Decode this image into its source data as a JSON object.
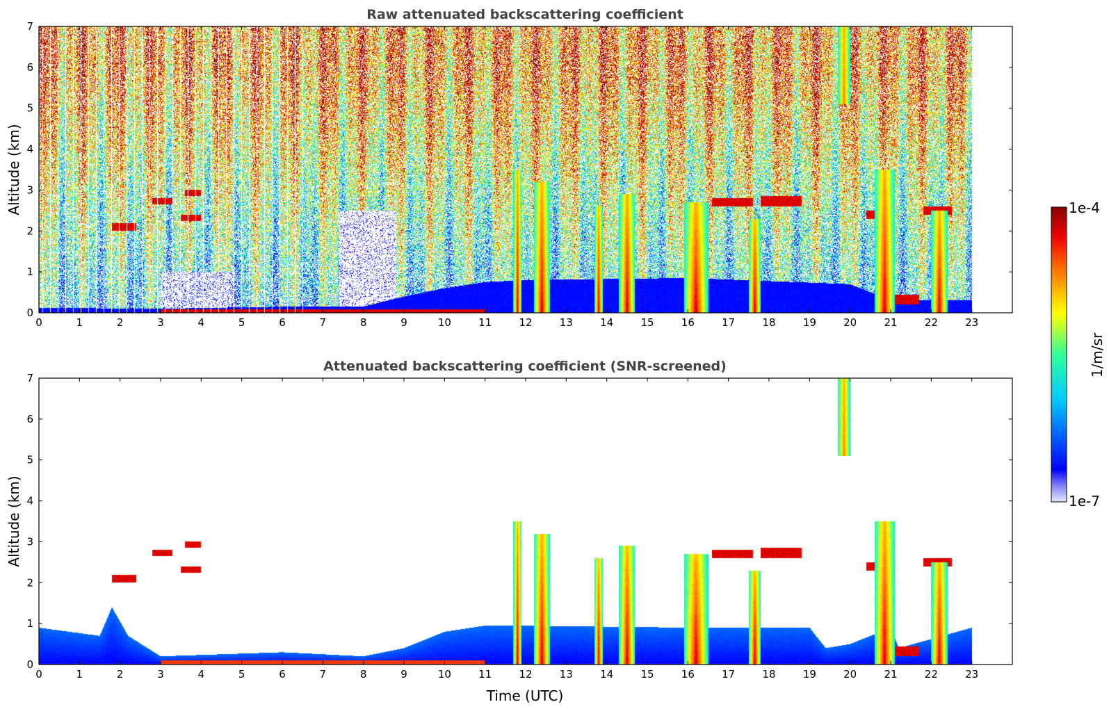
{
  "chart_data": [
    {
      "type": "heatmap",
      "title": "Raw attenuated backscattering coefficient",
      "xlabel": "",
      "ylabel": "Altitude (km)",
      "xlim": [
        0,
        24
      ],
      "ylim": [
        0,
        7
      ],
      "xticks": [
        "0",
        "1",
        "2",
        "3",
        "4",
        "5",
        "6",
        "7",
        "8",
        "9",
        "10",
        "11",
        "12",
        "13",
        "14",
        "15",
        "16",
        "17",
        "18",
        "19",
        "20",
        "21",
        "22",
        "23"
      ],
      "yticks": [
        "0",
        "1",
        "2",
        "3",
        "4",
        "5",
        "6",
        "7"
      ],
      "data_end_time": 23,
      "colorbar": {
        "label": "1/m/sr",
        "min": "1e-7",
        "max": "1e-4",
        "scale": "log",
        "colormap": "jet"
      },
      "features": {
        "surface_layer_top_km": [
          [
            0,
            0.12
          ],
          [
            3,
            0.1
          ],
          [
            6,
            0.15
          ],
          [
            8,
            0.15
          ],
          [
            9,
            0.4
          ],
          [
            10,
            0.6
          ],
          [
            11,
            0.75
          ],
          [
            12,
            0.8
          ],
          [
            16,
            0.85
          ],
          [
            20,
            0.7
          ],
          [
            21,
            0.3
          ],
          [
            23,
            0.3
          ]
        ],
        "clouds": [
          {
            "t0": 1.8,
            "t1": 2.4,
            "base_km": 2.0,
            "top_km": 2.2
          },
          {
            "t0": 2.8,
            "t1": 3.3,
            "base_km": 2.65,
            "top_km": 2.8
          },
          {
            "t0": 3.6,
            "t1": 4.0,
            "base_km": 2.85,
            "top_km": 3.0
          },
          {
            "t0": 3.5,
            "t1": 4.0,
            "base_km": 2.25,
            "top_km": 2.4
          },
          {
            "t0": 11.7,
            "t1": 11.9,
            "base_km": 0.0,
            "top_km": 3.5
          },
          {
            "t0": 12.2,
            "t1": 12.6,
            "base_km": 0.0,
            "top_km": 3.2
          },
          {
            "t0": 13.7,
            "t1": 13.9,
            "base_km": 0.0,
            "top_km": 2.6
          },
          {
            "t0": 14.3,
            "t1": 14.7,
            "base_km": 0.0,
            "top_km": 2.9
          },
          {
            "t0": 15.9,
            "t1": 16.5,
            "base_km": 0.0,
            "top_km": 2.7
          },
          {
            "t0": 16.6,
            "t1": 17.6,
            "base_km": 2.6,
            "top_km": 2.8
          },
          {
            "t0": 17.5,
            "t1": 17.8,
            "base_km": 0.0,
            "top_km": 2.3
          },
          {
            "t0": 17.8,
            "t1": 18.8,
            "base_km": 2.6,
            "top_km": 2.85
          },
          {
            "t0": 19.7,
            "t1": 20.0,
            "base_km": 5.1,
            "top_km": 7.0
          },
          {
            "t0": 20.4,
            "t1": 21.1,
            "base_km": 2.3,
            "top_km": 2.5
          },
          {
            "t0": 20.6,
            "t1": 21.1,
            "base_km": 0.0,
            "top_km": 3.5
          },
          {
            "t0": 21.1,
            "t1": 21.7,
            "base_km": 0.2,
            "top_km": 0.45
          },
          {
            "t0": 21.8,
            "t1": 22.5,
            "base_km": 2.4,
            "top_km": 2.6
          },
          {
            "t0": 22.0,
            "t1": 22.4,
            "base_km": 0.0,
            "top_km": 2.5
          }
        ]
      }
    },
    {
      "type": "heatmap",
      "title": "Attenuated backscattering coefficient (SNR-screened)",
      "xlabel": "Time (UTC)",
      "ylabel": "Altitude (km)",
      "xlim": [
        0,
        24
      ],
      "ylim": [
        0,
        7
      ],
      "xticks": [
        "0",
        "1",
        "2",
        "3",
        "4",
        "5",
        "6",
        "7",
        "8",
        "9",
        "10",
        "11",
        "12",
        "13",
        "14",
        "15",
        "16",
        "17",
        "18",
        "19",
        "20",
        "21",
        "22",
        "23"
      ],
      "yticks": [
        "0",
        "1",
        "2",
        "3",
        "4",
        "5",
        "6",
        "7"
      ],
      "data_end_time": 23,
      "colorbar": {
        "label": "1/m/sr",
        "min": "1e-7",
        "max": "1e-4",
        "scale": "log",
        "colormap": "jet"
      },
      "features": {
        "screened_layer_top_km": [
          [
            0,
            0.9
          ],
          [
            1.5,
            0.7
          ],
          [
            1.8,
            1.4
          ],
          [
            2.2,
            0.7
          ],
          [
            3,
            0.2
          ],
          [
            6,
            0.3
          ],
          [
            8,
            0.2
          ],
          [
            9,
            0.4
          ],
          [
            10,
            0.8
          ],
          [
            11,
            0.95
          ],
          [
            12,
            0.95
          ],
          [
            16,
            0.9
          ],
          [
            19,
            0.9
          ],
          [
            19.4,
            0.4
          ],
          [
            20,
            0.5
          ],
          [
            21,
            0.9
          ],
          [
            21.2,
            0.4
          ],
          [
            23,
            0.9
          ]
        ]
      }
    }
  ]
}
